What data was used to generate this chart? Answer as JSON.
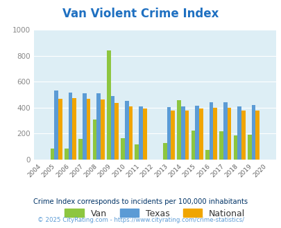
{
  "title": "Van Violent Crime Index",
  "years": [
    2004,
    2005,
    2006,
    2007,
    2008,
    2009,
    2010,
    2011,
    2012,
    2013,
    2014,
    2015,
    2016,
    2017,
    2018,
    2019,
    2020
  ],
  "van": [
    0,
    85,
    85,
    160,
    310,
    840,
    165,
    115,
    0,
    125,
    455,
    225,
    75,
    220,
    185,
    190,
    0
  ],
  "texas": [
    0,
    530,
    515,
    510,
    510,
    490,
    450,
    410,
    0,
    405,
    410,
    415,
    440,
    440,
    410,
    420,
    0
  ],
  "national": [
    0,
    470,
    475,
    470,
    460,
    435,
    410,
    395,
    0,
    375,
    380,
    395,
    400,
    400,
    380,
    380,
    0
  ],
  "van_color": "#8dc63f",
  "texas_color": "#5b9bd5",
  "national_color": "#f0a500",
  "bg_color": "#ddeef5",
  "title_color": "#1f70c1",
  "ylim": [
    0,
    1000
  ],
  "yticks": [
    0,
    200,
    400,
    600,
    800,
    1000
  ],
  "subtitle": "Crime Index corresponds to incidents per 100,000 inhabitants",
  "footer": "© 2025 CityRating.com - https://www.cityrating.com/crime-statistics/",
  "subtitle_color": "#003366",
  "footer_color": "#5b9bd5"
}
